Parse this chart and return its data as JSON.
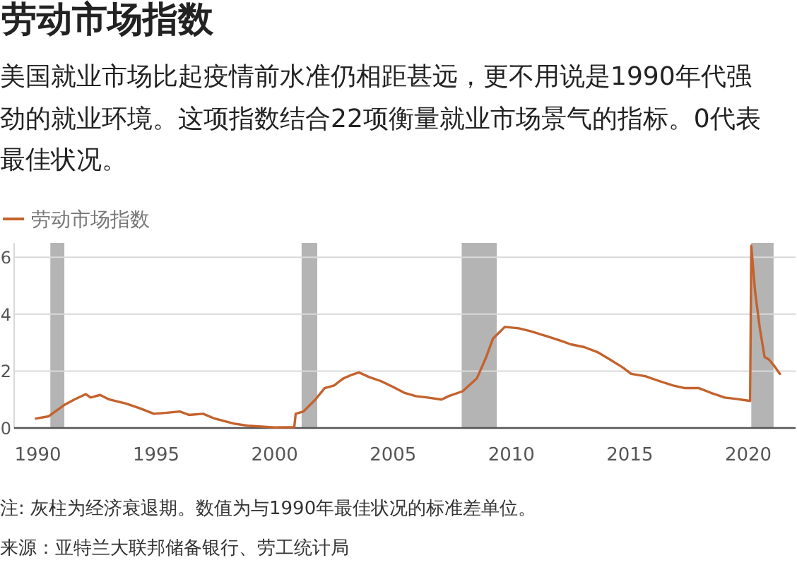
{
  "chart_data": {
    "type": "line",
    "title": "劳动市场指数",
    "subtitle": "美国就业市场比起疫情前水准仍相距甚远，更不用说是1990年代强劲的就业环境。这项指数结合22项衡量就业市场景气的指标。0代表最佳状况。",
    "annotations": [
      "注: 灰柱为经济衰退期。数值为与1990年最佳状况的标准差单位。",
      "来源：亚特兰大联邦储备银行、劳工统计局"
    ],
    "series": [
      {
        "name": "劳动市场指数",
        "color": "#c4622d",
        "x": [
          1989.92,
          1990.46,
          1991.14,
          1991.54,
          1992.03,
          1992.23,
          1992.63,
          1993.02,
          1993.72,
          1994.31,
          1994.9,
          1995.39,
          1995.99,
          1996.38,
          1996.98,
          1997.47,
          1998.26,
          1998.85,
          1999.44,
          2000.0,
          2000.83,
          2000.89,
          2001.22,
          2001.72,
          2002.11,
          2002.51,
          2002.9,
          2003.2,
          2003.56,
          2003.99,
          2004.48,
          2004.98,
          2005.47,
          2005.96,
          2006.46,
          2007.05,
          2007.35,
          2007.94,
          2008.54,
          2008.93,
          2009.22,
          2009.72,
          2010.31,
          2010.8,
          2011.5,
          2012.1,
          2012.5,
          2013.08,
          2013.67,
          2014.17,
          2014.66,
          2015.06,
          2015.65,
          2016.24,
          2016.83,
          2017.33,
          2017.92,
          2018.41,
          2019.0,
          2019.5,
          2019.99,
          2020.08,
          2020.13,
          2020.29,
          2020.49,
          2020.69,
          2020.88,
          2021.08,
          2021.34
        ],
        "values": [
          0.33,
          0.41,
          0.82,
          1.0,
          1.19,
          1.07,
          1.16,
          1.0,
          0.86,
          0.69,
          0.5,
          0.53,
          0.58,
          0.46,
          0.5,
          0.33,
          0.16,
          0.08,
          0.05,
          0.02,
          0.03,
          0.5,
          0.58,
          1.0,
          1.4,
          1.49,
          1.74,
          1.85,
          1.95,
          1.79,
          1.65,
          1.45,
          1.24,
          1.12,
          1.07,
          1.0,
          1.12,
          1.29,
          1.74,
          2.48,
          3.14,
          3.55,
          3.5,
          3.4,
          3.22,
          3.06,
          2.94,
          2.84,
          2.65,
          2.4,
          2.15,
          1.9,
          1.82,
          1.65,
          1.49,
          1.4,
          1.4,
          1.24,
          1.07,
          1.02,
          0.96,
          0.95,
          6.4,
          4.8,
          3.5,
          2.5,
          2.4,
          2.2,
          1.9
        ]
      }
    ],
    "bands": [
      {
        "axis": "x",
        "from": 1990.53,
        "to": 1991.12,
        "color": "#b4b4b4"
      },
      {
        "axis": "x",
        "from": 2001.14,
        "to": 2001.8,
        "color": "#b4b4b4"
      },
      {
        "axis": "x",
        "from": 2007.9,
        "to": 2009.38,
        "color": "#b4b4b4"
      },
      {
        "axis": "x",
        "from": 2020.13,
        "to": 2021.07,
        "color": "#b4b4b4"
      }
    ],
    "xlim": [
      1989,
      2022
    ],
    "xticks": [
      1990,
      1995,
      2000,
      2005,
      2010,
      2015,
      2020
    ],
    "ylim": [
      0,
      6.5
    ],
    "yticks": [
      0,
      2,
      4,
      6
    ],
    "grid": "y",
    "legend": "top left"
  }
}
